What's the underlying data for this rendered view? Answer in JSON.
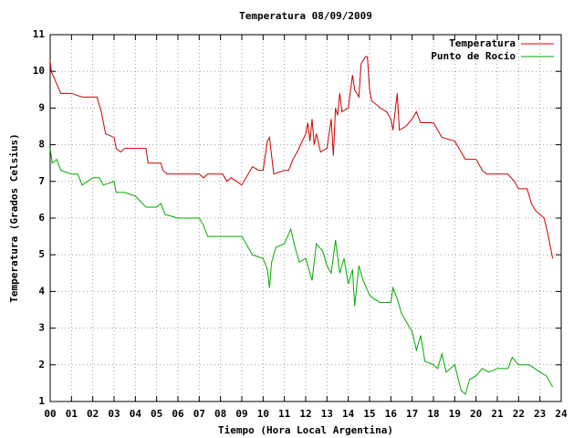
{
  "chart_data": {
    "type": "line",
    "title": "Temperatura 08/09/2009",
    "xlabel": "Tiempo (Hora Local Argentina)",
    "ylabel": "Temperatura (Grados Celsius)",
    "xlim": [
      0,
      24
    ],
    "xticks": [
      {
        "value": 0,
        "label": "00"
      },
      {
        "value": 1,
        "label": "01"
      },
      {
        "value": 2,
        "label": "02"
      },
      {
        "value": 3,
        "label": "03"
      },
      {
        "value": 4,
        "label": "04"
      },
      {
        "value": 5,
        "label": "05"
      },
      {
        "value": 6,
        "label": "06"
      },
      {
        "value": 7,
        "label": "07"
      },
      {
        "value": 8,
        "label": "08"
      },
      {
        "value": 9,
        "label": "09"
      },
      10,
      11,
      12,
      13,
      14,
      15,
      16,
      17,
      18,
      19,
      20,
      21,
      22,
      23,
      24
    ],
    "ylim": [
      1,
      11
    ],
    "yticks": [
      1,
      2,
      3,
      4,
      5,
      6,
      7,
      8,
      9,
      10,
      11
    ],
    "grid": true,
    "legend": "top-right",
    "series": [
      {
        "name": "Temperatura",
        "color": "#cc0000",
        "x": [
          0,
          0.05,
          0.2,
          0.35,
          0.5,
          1.0,
          1.5,
          2.2,
          2.4,
          2.6,
          3.0,
          3.1,
          3.3,
          3.5,
          4.5,
          4.6,
          5.2,
          5.3,
          5.5,
          7.0,
          7.2,
          7.4,
          8.1,
          8.3,
          8.5,
          9.0,
          9.3,
          9.5,
          9.8,
          10.0,
          10.2,
          10.3,
          10.5,
          11.0,
          11.2,
          11.4,
          11.6,
          12.0,
          12.1,
          12.2,
          12.3,
          12.4,
          12.5,
          12.7,
          13.0,
          13.2,
          13.3,
          13.4,
          13.5,
          13.6,
          13.7,
          14.0,
          14.2,
          14.3,
          14.5,
          14.6,
          14.8,
          14.9,
          15.0,
          15.1,
          15.5,
          15.8,
          16.0,
          16.1,
          16.2,
          16.3,
          16.4,
          16.7,
          17.0,
          17.2,
          17.4,
          18.0,
          18.2,
          18.4,
          19.0,
          19.3,
          19.5,
          20.0,
          20.3,
          20.5,
          21.5,
          21.8,
          22.0,
          22.4,
          22.6,
          22.8,
          23.0,
          23.2,
          23.4,
          23.5,
          23.6
        ],
        "values": [
          10.3,
          10.0,
          9.8,
          9.6,
          9.4,
          9.4,
          9.3,
          9.3,
          8.9,
          8.3,
          8.2,
          7.9,
          7.8,
          7.9,
          7.9,
          7.5,
          7.5,
          7.3,
          7.2,
          7.2,
          7.1,
          7.2,
          7.2,
          7.0,
          7.1,
          6.9,
          7.2,
          7.4,
          7.3,
          7.3,
          8.1,
          8.2,
          7.2,
          7.3,
          7.3,
          7.6,
          7.8,
          8.3,
          8.6,
          8.1,
          8.7,
          8.0,
          8.3,
          7.8,
          7.9,
          8.7,
          7.7,
          9.0,
          8.8,
          9.4,
          8.9,
          9.0,
          9.9,
          9.5,
          9.3,
          10.2,
          10.4,
          10.4,
          9.5,
          9.2,
          9.0,
          8.9,
          8.7,
          8.4,
          8.9,
          9.4,
          8.4,
          8.5,
          8.7,
          8.9,
          8.6,
          8.6,
          8.4,
          8.2,
          8.1,
          7.8,
          7.6,
          7.6,
          7.3,
          7.2,
          7.2,
          7.0,
          6.8,
          6.8,
          6.4,
          6.2,
          6.1,
          6.0,
          5.5,
          5.2,
          4.9
        ]
      },
      {
        "name": "Punto de Rocío",
        "color": "#00aa00",
        "x": [
          0,
          0.1,
          0.3,
          0.5,
          1.0,
          1.3,
          1.5,
          2.0,
          2.3,
          2.5,
          3.0,
          3.1,
          3.5,
          4.0,
          4.5,
          5.0,
          5.2,
          5.4,
          6.0,
          7.0,
          7.2,
          7.4,
          8.5,
          9.0,
          9.2,
          9.5,
          10.0,
          10.2,
          10.3,
          10.4,
          10.6,
          11.0,
          11.3,
          11.5,
          11.7,
          12.0,
          12.3,
          12.5,
          12.8,
          13.0,
          13.2,
          13.4,
          13.6,
          13.8,
          14.0,
          14.2,
          14.3,
          14.5,
          14.7,
          15.0,
          15.2,
          15.5,
          16.0,
          16.1,
          16.3,
          16.5,
          17.0,
          17.2,
          17.4,
          17.6,
          18.0,
          18.2,
          18.4,
          18.6,
          19.0,
          19.3,
          19.5,
          19.7,
          20.0,
          20.3,
          20.6,
          21.0,
          21.5,
          21.7,
          22.0,
          22.5,
          23.0,
          23.3,
          23.6
        ],
        "values": [
          7.9,
          7.5,
          7.6,
          7.3,
          7.2,
          7.2,
          6.9,
          7.1,
          7.1,
          6.9,
          7.0,
          6.7,
          6.7,
          6.6,
          6.3,
          6.3,
          6.4,
          6.1,
          6.0,
          6.0,
          5.8,
          5.5,
          5.5,
          5.5,
          5.3,
          5.0,
          4.9,
          4.6,
          4.1,
          4.8,
          5.2,
          5.3,
          5.7,
          5.2,
          4.8,
          4.9,
          4.3,
          5.3,
          5.1,
          4.7,
          4.5,
          5.4,
          4.5,
          4.9,
          4.2,
          4.6,
          3.6,
          4.7,
          4.3,
          3.9,
          3.8,
          3.7,
          3.7,
          4.1,
          3.8,
          3.4,
          2.9,
          2.4,
          2.8,
          2.1,
          2.0,
          1.9,
          2.3,
          1.8,
          2.0,
          1.3,
          1.2,
          1.6,
          1.7,
          1.9,
          1.8,
          1.9,
          1.9,
          2.2,
          2.0,
          2.0,
          1.8,
          1.7,
          1.4
        ]
      }
    ]
  }
}
